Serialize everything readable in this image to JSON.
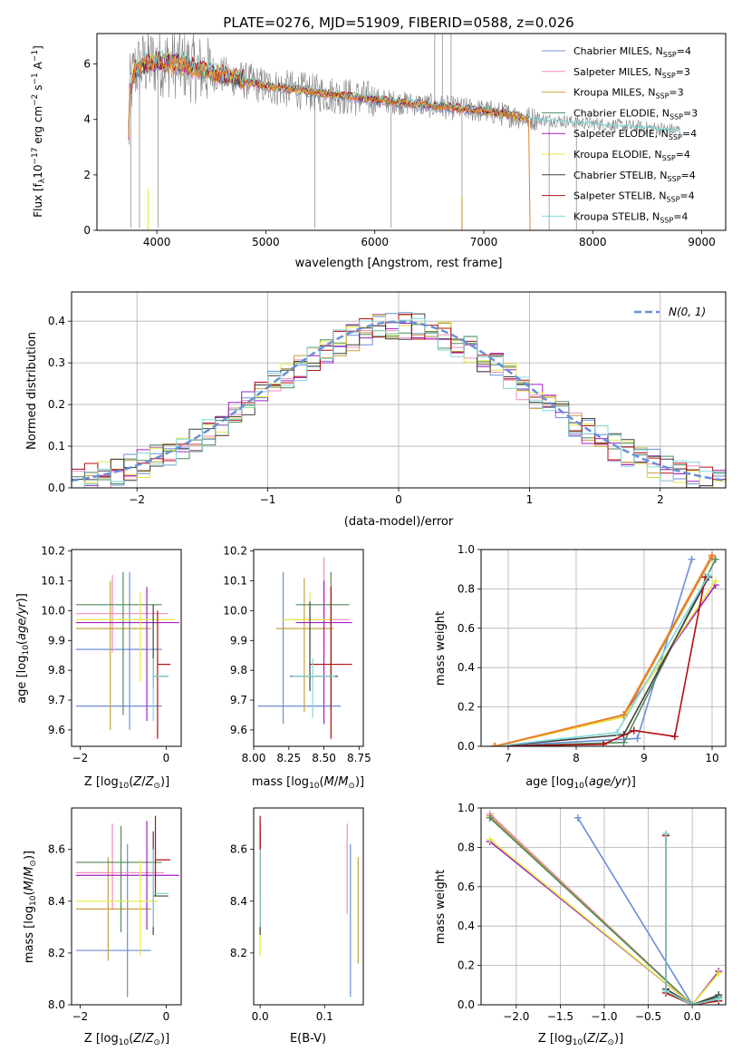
{
  "figure": {
    "title": "PLATE=0276, MJD=51909, FIBERID=0588, z=0.026"
  },
  "colors": {
    "Chabrier MILES": "#6a8fd8",
    "Salpeter MILES": "#f08cc0",
    "Kroupa MILES": "#c8a040",
    "Chabrier ELODIE": "#4f8a5c",
    "Salpeter ELODIE": "#a020c0",
    "Kroupa ELODIE": "#e8e840",
    "Chabrier STELIB": "#404040",
    "Salpeter STELIB": "#b01010",
    "Kroupa STELIB": "#80d8d8",
    "data": "#808080",
    "orange": "#e8802a",
    "normal_curve": "#6a8fd8"
  },
  "chart_data": [
    {
      "id": "spectrum",
      "type": "line",
      "xlabel": "wavelength [Angstrom, rest frame]",
      "ylabel_html": "Flux [f_λ 10^-17 erg cm^-2 s^-1 A^-1]",
      "xlim": [
        3450,
        9220
      ],
      "ylim": [
        0,
        7.1
      ],
      "xticks": [
        4000,
        5000,
        6000,
        7000,
        8000,
        9000
      ],
      "yticks": [
        0,
        2,
        4,
        6
      ],
      "legend": [
        {
          "name": "Chabrier MILES",
          "nssp": "N_SSP=4"
        },
        {
          "name": "Salpeter MILES",
          "nssp": "N_SSP=3"
        },
        {
          "name": "Kroupa MILES",
          "nssp": "N_SSP=3"
        },
        {
          "name": "Chabrier ELODIE",
          "nssp": "N_SSP=3"
        },
        {
          "name": "Salpeter ELODIE",
          "nssp": "N_SSP=4"
        },
        {
          "name": "Kroupa ELODIE",
          "nssp": "N_SSP=4"
        },
        {
          "name": "Chabrier STELIB",
          "nssp": "N_SSP=4"
        },
        {
          "name": "Salpeter STELIB",
          "nssp": "N_SSP=4"
        },
        {
          "name": "Kroupa STELIB",
          "nssp": "N_SSP=4"
        }
      ],
      "continuum": [
        [
          3750,
          5.0
        ],
        [
          3800,
          5.8
        ],
        [
          3900,
          6.0
        ],
        [
          4000,
          6.1
        ],
        [
          4200,
          6.0
        ],
        [
          4500,
          5.7
        ],
        [
          4800,
          5.4
        ],
        [
          5000,
          5.2
        ],
        [
          5500,
          4.95
        ],
        [
          6000,
          4.7
        ],
        [
          6500,
          4.5
        ],
        [
          7000,
          4.3
        ],
        [
          7400,
          4.05
        ],
        [
          8000,
          3.85
        ],
        [
          8500,
          3.7
        ],
        [
          8800,
          3.6
        ]
      ]
    },
    {
      "id": "residuals",
      "type": "line",
      "xlabel": "(data-model)/error",
      "ylabel": "Normed distribution",
      "xlim": [
        -2.5,
        2.5
      ],
      "ylim": [
        0,
        0.47
      ],
      "xticks": [
        -2,
        -1,
        0,
        1,
        2
      ],
      "yticks": [
        0.0,
        0.1,
        0.2,
        0.3,
        0.4
      ],
      "legend": "N(0,1)"
    },
    {
      "id": "age_vs_Z",
      "type": "scatter",
      "xlabel": "Z [log10(Z/Z☉)]",
      "ylabel": "age [log10(age/yr)]",
      "xlim": [
        -2.2,
        0.35
      ],
      "ylim": [
        9.545,
        10.205
      ],
      "xticks": [
        -2,
        0
      ],
      "yticks": [
        9.6,
        9.7,
        9.8,
        9.9,
        10.0,
        10.1,
        10.2
      ]
    },
    {
      "id": "age_vs_mass",
      "type": "scatter",
      "xlabel": "mass [log10(M/M☉)]",
      "xlim": [
        8.0,
        8.78
      ],
      "ylim": [
        9.545,
        10.205
      ],
      "xticks": [
        8.0,
        8.25,
        8.5,
        8.75
      ],
      "yticks": [
        9.6,
        9.7,
        9.8,
        9.9,
        10.0,
        10.1,
        10.2
      ]
    },
    {
      "id": "weight_vs_age",
      "type": "line",
      "xlabel": "age [log10(age/yr)]",
      "ylabel": "mass weight",
      "xlim": [
        6.6,
        10.2
      ],
      "ylim": [
        0,
        1.0
      ],
      "xticks": [
        7,
        8,
        9,
        10
      ],
      "yticks": [
        0.0,
        0.2,
        0.4,
        0.6,
        0.8,
        1.0
      ],
      "series": [
        {
          "name": "Chabrier MILES",
          "points": [
            [
              6.8,
              0.0
            ],
            [
              8.9,
              0.04
            ],
            [
              9.7,
              0.95
            ]
          ]
        },
        {
          "name": "Salpeter MILES",
          "points": [
            [
              6.8,
              0.0
            ],
            [
              8.7,
              0.16
            ],
            [
              10.0,
              0.97
            ]
          ]
        },
        {
          "name": "Kroupa MILES",
          "points": [
            [
              6.8,
              0.0
            ],
            [
              8.7,
              0.15
            ],
            [
              10.0,
              0.96
            ]
          ]
        },
        {
          "name": "Chabrier ELODIE",
          "points": [
            [
              6.8,
              0.0
            ],
            [
              8.7,
              0.02
            ],
            [
              10.05,
              0.95
            ]
          ]
        },
        {
          "name": "Salpeter ELODIE",
          "points": [
            [
              6.8,
              0.0
            ],
            [
              8.7,
              0.16
            ],
            [
              10.05,
              0.82
            ]
          ]
        },
        {
          "name": "Kroupa ELODIE",
          "points": [
            [
              6.8,
              0.0
            ],
            [
              8.7,
              0.15
            ],
            [
              10.05,
              0.84
            ]
          ]
        },
        {
          "name": "Chabrier STELIB",
          "points": [
            [
              6.8,
              0.0
            ],
            [
              8.7,
              0.06
            ],
            [
              9.95,
              0.86
            ]
          ]
        },
        {
          "name": "Salpeter STELIB",
          "points": [
            [
              6.8,
              0.0
            ],
            [
              8.4,
              0.01
            ],
            [
              8.85,
              0.08
            ],
            [
              9.45,
              0.05
            ],
            [
              9.9,
              0.86
            ]
          ]
        },
        {
          "name": "Kroupa STELIB",
          "points": [
            [
              6.8,
              0.0
            ],
            [
              8.6,
              0.07
            ],
            [
              9.95,
              0.87
            ]
          ]
        },
        {
          "name": "orange",
          "points": [
            [
              6.8,
              0.0
            ],
            [
              8.7,
              0.16
            ],
            [
              10.0,
              0.97
            ]
          ]
        }
      ]
    },
    {
      "id": "mass_vs_Z",
      "type": "scatter",
      "xlabel": "Z [log10(Z/Z☉)]",
      "ylabel": "mass [log10(M/M☉)]",
      "xlim": [
        -2.2,
        0.35
      ],
      "ylim": [
        8.0,
        8.76
      ],
      "xticks": [
        -2,
        0
      ],
      "yticks": [
        8.0,
        8.2,
        8.4,
        8.6
      ]
    },
    {
      "id": "mass_vs_ebv",
      "type": "scatter",
      "xlabel": "E(B-V)",
      "xlim": [
        -0.01,
        0.16
      ],
      "ylim": [
        8.0,
        8.76
      ],
      "xticks": [
        0.0,
        0.1
      ],
      "yticks": [
        8.2,
        8.4,
        8.6
      ]
    },
    {
      "id": "weight_vs_Z",
      "type": "line",
      "xlabel": "Z [log10(Z/Z☉)]",
      "ylabel": "mass weight",
      "xlim": [
        -2.4,
        0.38
      ],
      "ylim": [
        0,
        1.0
      ],
      "xticks": [
        -2.0,
        -1.5,
        -1.0,
        -0.5,
        0.0
      ],
      "yticks": [
        0.0,
        0.2,
        0.4,
        0.6,
        0.8,
        1.0
      ],
      "series": [
        {
          "name": "Chabrier MILES",
          "points": [
            [
              -1.3,
              0.95
            ],
            [
              0.0,
              0.0
            ],
            [
              0.3,
              0.03
            ]
          ]
        },
        {
          "name": "Salpeter MILES",
          "points": [
            [
              -2.3,
              0.97
            ],
            [
              0.0,
              0.0
            ],
            [
              0.3,
              0.02
            ]
          ]
        },
        {
          "name": "Kroupa MILES",
          "points": [
            [
              -2.3,
              0.96
            ],
            [
              0.0,
              0.0
            ],
            [
              0.3,
              0.02
            ]
          ]
        },
        {
          "name": "Chabrier ELODIE",
          "points": [
            [
              -2.3,
              0.95
            ],
            [
              0.0,
              0.0
            ],
            [
              0.3,
              0.04
            ]
          ]
        },
        {
          "name": "Salpeter ELODIE",
          "points": [
            [
              -2.3,
              0.83
            ],
            [
              0.0,
              0.0
            ],
            [
              0.3,
              0.17
            ]
          ]
        },
        {
          "name": "Kroupa ELODIE",
          "points": [
            [
              -2.3,
              0.84
            ],
            [
              0.0,
              0.0
            ],
            [
              0.3,
              0.16
            ]
          ]
        },
        {
          "name": "Chabrier STELIB",
          "points": [
            [
              -0.3,
              0.86
            ],
            [
              -0.3,
              0.08
            ],
            [
              0.0,
              0.0
            ],
            [
              0.3,
              0.05
            ]
          ]
        },
        {
          "name": "Salpeter STELIB",
          "points": [
            [
              -0.3,
              0.86
            ],
            [
              -0.3,
              0.06
            ],
            [
              0.0,
              0.0
            ],
            [
              0.3,
              0.02
            ]
          ]
        },
        {
          "name": "Kroupa STELIB",
          "points": [
            [
              -0.3,
              0.87
            ],
            [
              -0.3,
              0.07
            ],
            [
              0.0,
              0.0
            ],
            [
              0.3,
              0.03
            ]
          ]
        }
      ]
    }
  ],
  "errorbars": {
    "age_vs_Z": [
      {
        "name": "Chabrier MILES",
        "x": -0.85,
        "y": 9.87,
        "xlo": -2.1,
        "xhi": -0.1,
        "ylo": 9.6,
        "yhi": 10.13
      },
      {
        "name": "Chabrier MILES",
        "x": -1.3,
        "y": 9.68,
        "xlo": -2.1,
        "xhi": -0.1,
        "ylo": 9.68,
        "yhi": 9.68
      },
      {
        "name": "Salpeter MILES",
        "x": -1.25,
        "y": 9.99,
        "xlo": -2.1,
        "xhi": 0.05,
        "ylo": 9.86,
        "yhi": 10.12
      },
      {
        "name": "Kroupa MILES",
        "x": -1.3,
        "y": 9.94,
        "xlo": -2.1,
        "xhi": -0.35,
        "ylo": 9.6,
        "yhi": 10.1
      },
      {
        "name": "Chabrier ELODIE",
        "x": -1.0,
        "y": 10.02,
        "xlo": -2.1,
        "xhi": -0.1,
        "ylo": 9.65,
        "yhi": 10.13
      },
      {
        "name": "Salpeter ELODIE",
        "x": -0.45,
        "y": 9.96,
        "xlo": -2.1,
        "xhi": 0.3,
        "ylo": 9.63,
        "yhi": 10.08
      },
      {
        "name": "Kroupa ELODIE",
        "x": -0.6,
        "y": 9.97,
        "xlo": -2.1,
        "xhi": 0.2,
        "ylo": 9.76,
        "yhi": 10.06
      },
      {
        "name": "Chabrier STELIB",
        "x": -0.3,
        "y": 9.78,
        "xlo": -0.3,
        "xhi": 0.05,
        "ylo": 9.74,
        "yhi": 10.02
      },
      {
        "name": "Salpeter STELIB",
        "x": -0.2,
        "y": 9.82,
        "xlo": -0.2,
        "xhi": 0.1,
        "ylo": 9.57,
        "yhi": 10.0
      },
      {
        "name": "Kroupa STELIB",
        "x": -0.3,
        "y": 9.78,
        "xlo": -0.3,
        "xhi": 0.05,
        "ylo": 9.63,
        "yhi": 9.84
      }
    ],
    "age_vs_mass": [
      {
        "name": "Chabrier MILES",
        "x": 8.21,
        "y": 9.68,
        "xlo": 8.03,
        "xhi": 8.62,
        "ylo": 9.62,
        "yhi": 10.13
      },
      {
        "name": "Salpeter MILES",
        "x": 8.5,
        "y": 9.97,
        "xlo": 8.3,
        "xhi": 8.68,
        "ylo": 9.85,
        "yhi": 10.18
      },
      {
        "name": "Kroupa MILES",
        "x": 8.36,
        "y": 9.94,
        "xlo": 8.16,
        "xhi": 8.57,
        "ylo": 9.66,
        "yhi": 10.11
      },
      {
        "name": "Chabrier ELODIE",
        "x": 8.55,
        "y": 10.02,
        "xlo": 8.3,
        "xhi": 8.68,
        "ylo": 9.67,
        "yhi": 10.13
      },
      {
        "name": "Salpeter ELODIE",
        "x": 8.5,
        "y": 9.96,
        "xlo": 8.3,
        "xhi": 8.7,
        "ylo": 9.62,
        "yhi": 10.1
      },
      {
        "name": "Kroupa ELODIE",
        "x": 8.4,
        "y": 9.97,
        "xlo": 8.2,
        "xhi": 8.55,
        "ylo": 9.76,
        "yhi": 10.06
      },
      {
        "name": "Chabrier STELIB",
        "x": 8.4,
        "y": 9.78,
        "xlo": 8.26,
        "xhi": 8.6,
        "ylo": 9.73,
        "yhi": 10.03
      },
      {
        "name": "Salpeter STELIB",
        "x": 8.55,
        "y": 9.82,
        "xlo": 8.4,
        "xhi": 8.7,
        "ylo": 9.57,
        "yhi": 10.08
      },
      {
        "name": "Kroupa STELIB",
        "x": 8.42,
        "y": 9.78,
        "xlo": 8.27,
        "xhi": 8.58,
        "ylo": 9.64,
        "yhi": 9.84
      }
    ],
    "mass_vs_Z": [
      {
        "name": "Chabrier MILES",
        "x": -0.9,
        "y": 8.21,
        "xlo": -2.1,
        "xhi": -0.35,
        "ylo": 8.03,
        "yhi": 8.62
      },
      {
        "name": "Salpeter MILES",
        "x": -1.25,
        "y": 8.51,
        "xlo": -2.1,
        "xhi": -0.05,
        "ylo": 8.37,
        "yhi": 8.7
      },
      {
        "name": "Kroupa MILES",
        "x": -1.35,
        "y": 8.37,
        "xlo": -2.1,
        "xhi": -0.35,
        "ylo": 8.17,
        "yhi": 8.57
      },
      {
        "name": "Chabrier ELODIE",
        "x": -1.05,
        "y": 8.55,
        "xlo": -2.1,
        "xhi": -0.1,
        "ylo": 8.28,
        "yhi": 8.69
      },
      {
        "name": "Salpeter ELODIE",
        "x": -0.45,
        "y": 8.5,
        "xlo": -2.1,
        "xhi": 0.3,
        "ylo": 8.29,
        "yhi": 8.71
      },
      {
        "name": "Kroupa ELODIE",
        "x": -0.6,
        "y": 8.4,
        "xlo": -2.1,
        "xhi": -0.2,
        "ylo": 8.19,
        "yhi": 8.56
      },
      {
        "name": "Chabrier STELIB",
        "x": -0.3,
        "y": 8.42,
        "xlo": -0.3,
        "xhi": 0.05,
        "ylo": 8.27,
        "yhi": 8.67
      },
      {
        "name": "Salpeter STELIB",
        "x": -0.25,
        "y": 8.56,
        "xlo": -0.25,
        "xhi": 0.1,
        "ylo": 8.42,
        "yhi": 8.73
      },
      {
        "name": "Kroupa STELIB",
        "x": -0.3,
        "y": 8.43,
        "xlo": -0.3,
        "xhi": 0.05,
        "ylo": 8.3,
        "yhi": 8.6
      }
    ],
    "mass_vs_ebv": [
      {
        "name": "Chabrier MILES",
        "x": 0.14,
        "y": 8.21,
        "ylo": 8.03,
        "yhi": 8.62
      },
      {
        "name": "Salpeter MILES",
        "x": 0.135,
        "y": 8.51,
        "ylo": 8.35,
        "yhi": 8.7
      },
      {
        "name": "Kroupa MILES",
        "x": 0.152,
        "y": 8.37,
        "ylo": 8.16,
        "yhi": 8.57
      },
      {
        "name": "Chabrier ELODIE",
        "x": 0.0,
        "y": 8.55,
        "ylo": 8.28,
        "yhi": 8.69
      },
      {
        "name": "Salpeter ELODIE",
        "x": 0.0,
        "y": 8.5,
        "ylo": 8.29,
        "yhi": 8.71
      },
      {
        "name": "Kroupa ELODIE",
        "x": 0.0,
        "y": 8.4,
        "ylo": 8.19,
        "yhi": 8.56
      },
      {
        "name": "Chabrier STELIB",
        "x": 0.0,
        "y": 8.42,
        "ylo": 8.27,
        "yhi": 8.67
      },
      {
        "name": "Salpeter STELIB",
        "x": 0.0,
        "y": 8.56,
        "ylo": 8.42,
        "yhi": 8.73
      },
      {
        "name": "Kroupa STELIB",
        "x": 0.0,
        "y": 8.43,
        "ylo": 8.3,
        "yhi": 8.6
      }
    ]
  }
}
